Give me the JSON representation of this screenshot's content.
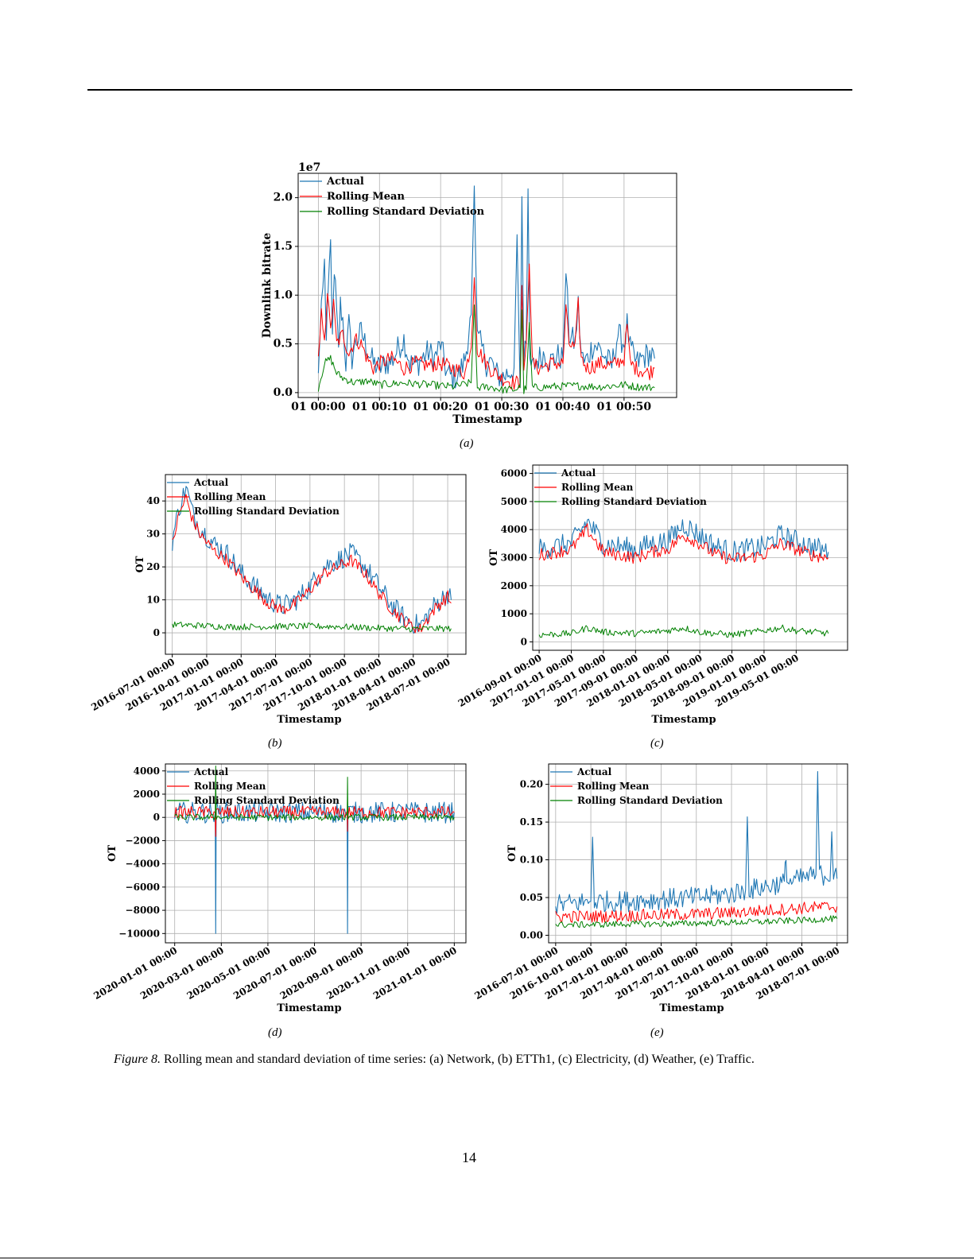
{
  "page": {
    "caption_label": "Figure 8.",
    "caption_text": " Rolling mean and standard deviation of time series: (a) Network, (b) ETTh1, (c) Electricity, (d) Weather, (e) Traffic.",
    "page_number": "14"
  },
  "colors": {
    "actual": "#1f77b4",
    "mean": "#ff0000",
    "std": "#008000",
    "grid": "#b0b0b0"
  },
  "chart_data": [
    {
      "id": "a",
      "sublabel": "(a)",
      "type": "line",
      "xlabel": "Timestamp",
      "ylabel": "Downlink bitrate",
      "offset_text": "1e7",
      "ylim": [
        -0.05,
        2.25
      ],
      "xlim": [
        -3.3,
        58.6
      ],
      "xticks": [
        0,
        10,
        20,
        30,
        40,
        50
      ],
      "xticklabels": [
        "01 00:00",
        "01 00:10",
        "01 00:20",
        "01 00:30",
        "01 00:40",
        "01 00:50"
      ],
      "yticks": [
        0.0,
        0.5,
        1.0,
        1.5,
        2.0
      ],
      "yticklabels": [
        "0.0",
        "0.5",
        "1.0",
        "1.5",
        "2.0"
      ],
      "grid": true,
      "legend": {
        "position": "top-left",
        "entries": [
          "Actual",
          "Rolling Mean",
          "Rolling Standard Deviation"
        ]
      },
      "series": [
        {
          "name": "Actual",
          "role": "actual",
          "x": [
            0,
            0.5,
            1,
            1.3,
            1.6,
            2,
            2.3,
            2.6,
            3,
            3.3,
            3.6,
            4,
            4.5,
            5,
            5.5,
            6,
            7,
            8,
            9,
            10,
            11,
            12,
            13,
            14,
            15,
            16,
            17,
            18,
            19,
            20,
            21,
            22,
            23,
            24,
            25,
            25.5,
            26,
            26.5,
            27,
            27.5,
            28,
            29,
            30,
            31,
            32,
            32.5,
            33,
            33.3,
            33.6,
            34,
            34.3,
            34.6,
            35,
            36,
            37,
            38,
            39,
            40,
            40.5,
            41,
            42,
            42.5,
            43,
            43.5,
            44,
            45,
            46,
            47,
            48,
            49,
            50,
            50.5,
            51,
            52,
            53,
            54,
            55
          ],
          "y": [
            0.2,
            0.9,
            1.37,
            0.5,
            1.0,
            1.57,
            0.6,
            1.3,
            0.8,
            0.4,
            0.9,
            0.75,
            0.3,
            0.7,
            0.35,
            0.5,
            0.62,
            0.45,
            0.3,
            0.25,
            0.3,
            0.32,
            0.45,
            0.55,
            0.3,
            0.28,
            0.35,
            0.42,
            0.35,
            0.5,
            0.2,
            0.15,
            0.18,
            0.35,
            0.8,
            2.12,
            0.55,
            0.5,
            0.4,
            0.3,
            0.35,
            0.2,
            0.15,
            0.2,
            0.25,
            1.62,
            0.05,
            2.01,
            0.3,
            0.5,
            2.09,
            0.3,
            0.25,
            0.35,
            0.4,
            0.32,
            0.38,
            0.35,
            1.26,
            0.6,
            0.5,
            0.9,
            0.4,
            0.3,
            0.35,
            0.5,
            0.45,
            0.35,
            0.28,
            0.6,
            0.5,
            0.7,
            0.45,
            0.3,
            0.35,
            0.4,
            0.35
          ]
        },
        {
          "name": "Rolling Mean",
          "role": "mean",
          "x": [
            0,
            0.5,
            1,
            1.5,
            2,
            2.5,
            3,
            4,
            5,
            6,
            7,
            8,
            9,
            10,
            12,
            14,
            16,
            18,
            20,
            22,
            24,
            25,
            25.5,
            26,
            27,
            28,
            30,
            32,
            33,
            33.3,
            33.6,
            34,
            34.5,
            35,
            36,
            38,
            40,
            40.5,
            41,
            42,
            42.5,
            43,
            44,
            46,
            48,
            50,
            50.5,
            51,
            52,
            54,
            55
          ],
          "y": [
            0.3,
            0.8,
            0.6,
            0.95,
            0.7,
            0.9,
            0.5,
            0.6,
            0.4,
            0.55,
            0.5,
            0.35,
            0.25,
            0.3,
            0.35,
            0.25,
            0.3,
            0.28,
            0.3,
            0.25,
            0.2,
            0.5,
            1.18,
            0.45,
            0.35,
            0.25,
            0.15,
            0.1,
            0.1,
            1.1,
            0.3,
            0.5,
            1.32,
            0.3,
            0.25,
            0.3,
            0.3,
            0.85,
            0.5,
            0.45,
            0.9,
            0.35,
            0.25,
            0.3,
            0.28,
            0.35,
            0.7,
            0.3,
            0.25,
            0.2,
            0.25
          ]
        },
        {
          "name": "Rolling Standard Deviation",
          "role": "std",
          "x": [
            0,
            1,
            2,
            3,
            4,
            6,
            8,
            10,
            14,
            18,
            22,
            25,
            25.5,
            26,
            28,
            30,
            32,
            33,
            33.3,
            33.6,
            34,
            34.5,
            35,
            38,
            42,
            46,
            50,
            52,
            55
          ],
          "y": [
            0.05,
            0.3,
            0.35,
            0.2,
            0.15,
            0.1,
            0.12,
            0.08,
            0.1,
            0.08,
            0.06,
            0.1,
            0.9,
            0.05,
            0.06,
            0.03,
            0.03,
            0.05,
            0.85,
            0.02,
            0.05,
            0.7,
            0.05,
            0.06,
            0.07,
            0.06,
            0.08,
            0.06,
            0.05
          ]
        }
      ]
    },
    {
      "id": "b",
      "sublabel": "(b)",
      "type": "line",
      "xlabel": "Timestamp",
      "ylabel": "OT",
      "ylim": [
        -6.5,
        48
      ],
      "xlim": [
        0,
        8.73
      ],
      "xticks": [
        0.2,
        1.2,
        2.2,
        3.2,
        4.2,
        5.2,
        6.2,
        7.2,
        8.2
      ],
      "xticklabels": [
        "2016-07-01 00:00",
        "2016-10-01 00:00",
        "2017-01-01 00:00",
        "2017-04-01 00:00",
        "2017-07-01 00:00",
        "2017-10-01 00:00",
        "2018-01-01 00:00",
        "2018-04-01 00:00",
        "2018-07-01 00:00"
      ],
      "yticks": [
        0,
        10,
        20,
        30,
        40
      ],
      "yticklabels": [
        "0",
        "10",
        "20",
        "30",
        "40"
      ],
      "grid": true,
      "legend": {
        "position": "top-left",
        "entries": [
          "Actual",
          "Rolling Mean",
          "Rolling Standard Deviation"
        ]
      },
      "series": [
        {
          "name": "Actual",
          "role": "actual",
          "x": [
            0.2,
            0.4,
            0.6,
            0.8,
            1.0,
            1.4,
            1.8,
            2.2,
            2.6,
            3.0,
            3.4,
            3.8,
            4.2,
            4.6,
            5.0,
            5.4,
            5.8,
            6.2,
            6.6,
            7.0,
            7.4,
            7.8,
            8.2,
            8.3
          ],
          "y": [
            28,
            38,
            44,
            36,
            32,
            27,
            24,
            18,
            14,
            10,
            8,
            10,
            14,
            20,
            22,
            24,
            20,
            14,
            8,
            4,
            2,
            8,
            12,
            10
          ]
        },
        {
          "name": "Rolling Mean",
          "role": "mean",
          "x": [
            0.2,
            0.4,
            0.6,
            0.8,
            1.0,
            1.4,
            1.8,
            2.2,
            2.6,
            3.0,
            3.4,
            3.8,
            4.2,
            4.6,
            5.0,
            5.4,
            5.8,
            6.2,
            6.6,
            7.0,
            7.4,
            7.8,
            8.2,
            8.3
          ],
          "y": [
            27,
            36,
            41,
            34,
            30,
            25,
            22,
            17,
            13,
            9,
            7,
            9,
            13,
            18,
            20,
            22,
            18,
            12,
            7,
            3,
            1,
            7,
            11,
            9
          ]
        },
        {
          "name": "Rolling Standard Deviation",
          "role": "std",
          "x": [
            0.2,
            1.0,
            2.0,
            3.0,
            4.0,
            5.0,
            6.0,
            7.0,
            8.3
          ],
          "y": [
            2.5,
            2.2,
            1.8,
            1.9,
            2.0,
            1.9,
            1.5,
            1.2,
            1.3
          ]
        }
      ]
    },
    {
      "id": "c",
      "sublabel": "(c)",
      "type": "line",
      "xlabel": "Timestamp",
      "ylabel": "OT",
      "ylim": [
        -300,
        6300
      ],
      "xlim": [
        0,
        9.8
      ],
      "xticks": [
        0.2,
        1.2,
        2.2,
        3.2,
        4.2,
        5.2,
        6.2,
        7.2,
        8.2
      ],
      "xticklabels": [
        "2016-09-01 00:00",
        "2017-01-01 00:00",
        "2017-05-01 00:00",
        "2017-09-01 00:00",
        "2018-01-01 00:00",
        "2018-05-01 00:00",
        "2018-09-01 00:00",
        "2019-01-01 00:00",
        "2019-05-01 00:00"
      ],
      "yticks": [
        0,
        1000,
        2000,
        3000,
        4000,
        5000,
        6000
      ],
      "yticklabels": [
        "0",
        "1000",
        "2000",
        "3000",
        "4000",
        "5000",
        "6000"
      ],
      "grid": true,
      "legend": {
        "position": "top-left",
        "entries": [
          "Actual",
          "Rolling Mean",
          "Rolling Standard Deviation"
        ]
      },
      "series": [
        {
          "name": "Actual",
          "role": "actual",
          "x": [
            0.2,
            0.7,
            1.2,
            1.7,
            2.2,
            2.7,
            3.2,
            3.7,
            4.2,
            4.7,
            5.2,
            5.7,
            6.2,
            6.7,
            7.2,
            7.7,
            8.2,
            8.7,
            9.2
          ],
          "y": [
            3300,
            3400,
            3500,
            4300,
            3500,
            3400,
            3300,
            3500,
            3600,
            4200,
            3800,
            3400,
            3200,
            3300,
            3400,
            3800,
            3600,
            3400,
            3200
          ]
        },
        {
          "name": "Rolling Mean",
          "role": "mean",
          "x": [
            0.2,
            0.7,
            1.2,
            1.7,
            2.2,
            2.7,
            3.2,
            3.7,
            4.2,
            4.7,
            5.2,
            5.7,
            6.2,
            6.7,
            7.2,
            7.7,
            8.2,
            8.7,
            9.2
          ],
          "y": [
            3100,
            3200,
            3300,
            4000,
            3200,
            3100,
            3000,
            3200,
            3300,
            3800,
            3500,
            3100,
            2950,
            3000,
            3100,
            3500,
            3300,
            3100,
            3000
          ]
        },
        {
          "name": "Rolling Standard Deviation",
          "role": "std",
          "x": [
            0.2,
            1.2,
            1.7,
            2.2,
            3.2,
            4.2,
            4.7,
            5.2,
            6.2,
            7.2,
            7.7,
            8.2,
            9.2
          ],
          "y": [
            250,
            300,
            500,
            350,
            300,
            400,
            500,
            350,
            250,
            400,
            500,
            400,
            300
          ]
        }
      ]
    },
    {
      "id": "d",
      "sublabel": "(d)",
      "type": "line",
      "xlabel": "Timestamp",
      "ylabel": "OT",
      "ylim": [
        -10800,
        4600
      ],
      "xlim": [
        -0.2,
        6.25
      ],
      "xticks": [
        0,
        1,
        2,
        3,
        4,
        5,
        6
      ],
      "xticklabels": [
        "2020-01-01 00:00",
        "2020-03-01 00:00",
        "2020-05-01 00:00",
        "2020-07-01 00:00",
        "2020-09-01 00:00",
        "2020-11-01 00:00",
        "2021-01-01 00:00"
      ],
      "yticks": [
        -10000,
        -8000,
        -6000,
        -4000,
        -2000,
        0,
        2000,
        4000
      ],
      "yticklabels": [
        "−10000",
        "−8000",
        "−6000",
        "−4000",
        "−2000",
        "0",
        "2000",
        "4000"
      ],
      "grid": true,
      "legend": {
        "position": "top-left",
        "entries": [
          "Actual",
          "Rolling Mean",
          "Rolling Standard Deviation"
        ]
      },
      "series": [
        {
          "name": "Actual",
          "role": "actual",
          "x": [
            0,
            0.87,
            0.88,
            0.89,
            2.5,
            3.7,
            3.71,
            3.72,
            5,
            6
          ],
          "y": [
            420,
            420,
            -9990,
            420,
            430,
            420,
            -9990,
            420,
            430,
            420
          ]
        },
        {
          "name": "Rolling Mean",
          "role": "mean",
          "x": [
            0,
            0.87,
            0.88,
            0.89,
            2.5,
            3.7,
            3.71,
            3.72,
            5,
            6
          ],
          "y": [
            430,
            430,
            -2000,
            430,
            440,
            430,
            -800,
            430,
            440,
            430
          ]
        },
        {
          "name": "Rolling Standard Deviation",
          "role": "std",
          "x": [
            0,
            0.87,
            0.88,
            0.89,
            2.5,
            3.7,
            3.71,
            3.72,
            5,
            6
          ],
          "y": [
            0,
            0,
            4400,
            0,
            0,
            0,
            3200,
            0,
            0,
            0
          ]
        }
      ]
    },
    {
      "id": "e",
      "sublabel": "(e)",
      "type": "line",
      "xlabel": "Timestamp",
      "ylabel": "OT",
      "ylim": [
        -0.01,
        0.227
      ],
      "xlim": [
        -0.2,
        8.3
      ],
      "xticks": [
        0,
        1,
        2,
        3,
        4,
        5,
        6,
        7,
        8
      ],
      "xticklabels": [
        "2016-07-01 00:00",
        "2016-10-01 00:00",
        "2017-01-01 00:00",
        "2017-04-01 00:00",
        "2017-07-01 00:00",
        "2017-10-01 00:00",
        "2018-01-01 00:00",
        "2018-04-01 00:00",
        "2018-07-01 00:00"
      ],
      "yticks": [
        0.0,
        0.05,
        0.1,
        0.15,
        0.2
      ],
      "yticklabels": [
        "0.00",
        "0.05",
        "0.10",
        "0.15",
        "0.20"
      ],
      "grid": true,
      "legend": {
        "position": "top-left",
        "entries": [
          "Actual",
          "Rolling Mean",
          "Rolling Standard Deviation"
        ]
      },
      "series": [
        {
          "name": "Actual",
          "role": "actual",
          "x": [
            0,
            1,
            1.05,
            1.1,
            2,
            3,
            4,
            5,
            5.4,
            5.45,
            5.5,
            6,
            6.5,
            6.55,
            6.6,
            7,
            7.4,
            7.45,
            7.5,
            7.8,
            7.85,
            7.9,
            8
          ],
          "y": [
            0.04,
            0.045,
            0.13,
            0.045,
            0.045,
            0.048,
            0.05,
            0.055,
            0.06,
            0.157,
            0.06,
            0.065,
            0.07,
            0.098,
            0.07,
            0.075,
            0.08,
            0.217,
            0.08,
            0.08,
            0.138,
            0.08,
            0.075
          ]
        },
        {
          "name": "Rolling Mean",
          "role": "mean",
          "x": [
            0,
            1,
            2,
            3,
            4,
            5,
            6,
            7,
            8
          ],
          "y": [
            0.025,
            0.025,
            0.026,
            0.027,
            0.028,
            0.03,
            0.033,
            0.036,
            0.038
          ]
        },
        {
          "name": "Rolling Standard Deviation",
          "role": "std",
          "x": [
            0,
            1,
            2,
            3,
            4,
            5,
            6,
            7,
            8
          ],
          "y": [
            0.014,
            0.014,
            0.015,
            0.015,
            0.016,
            0.017,
            0.018,
            0.02,
            0.022
          ]
        }
      ]
    }
  ]
}
